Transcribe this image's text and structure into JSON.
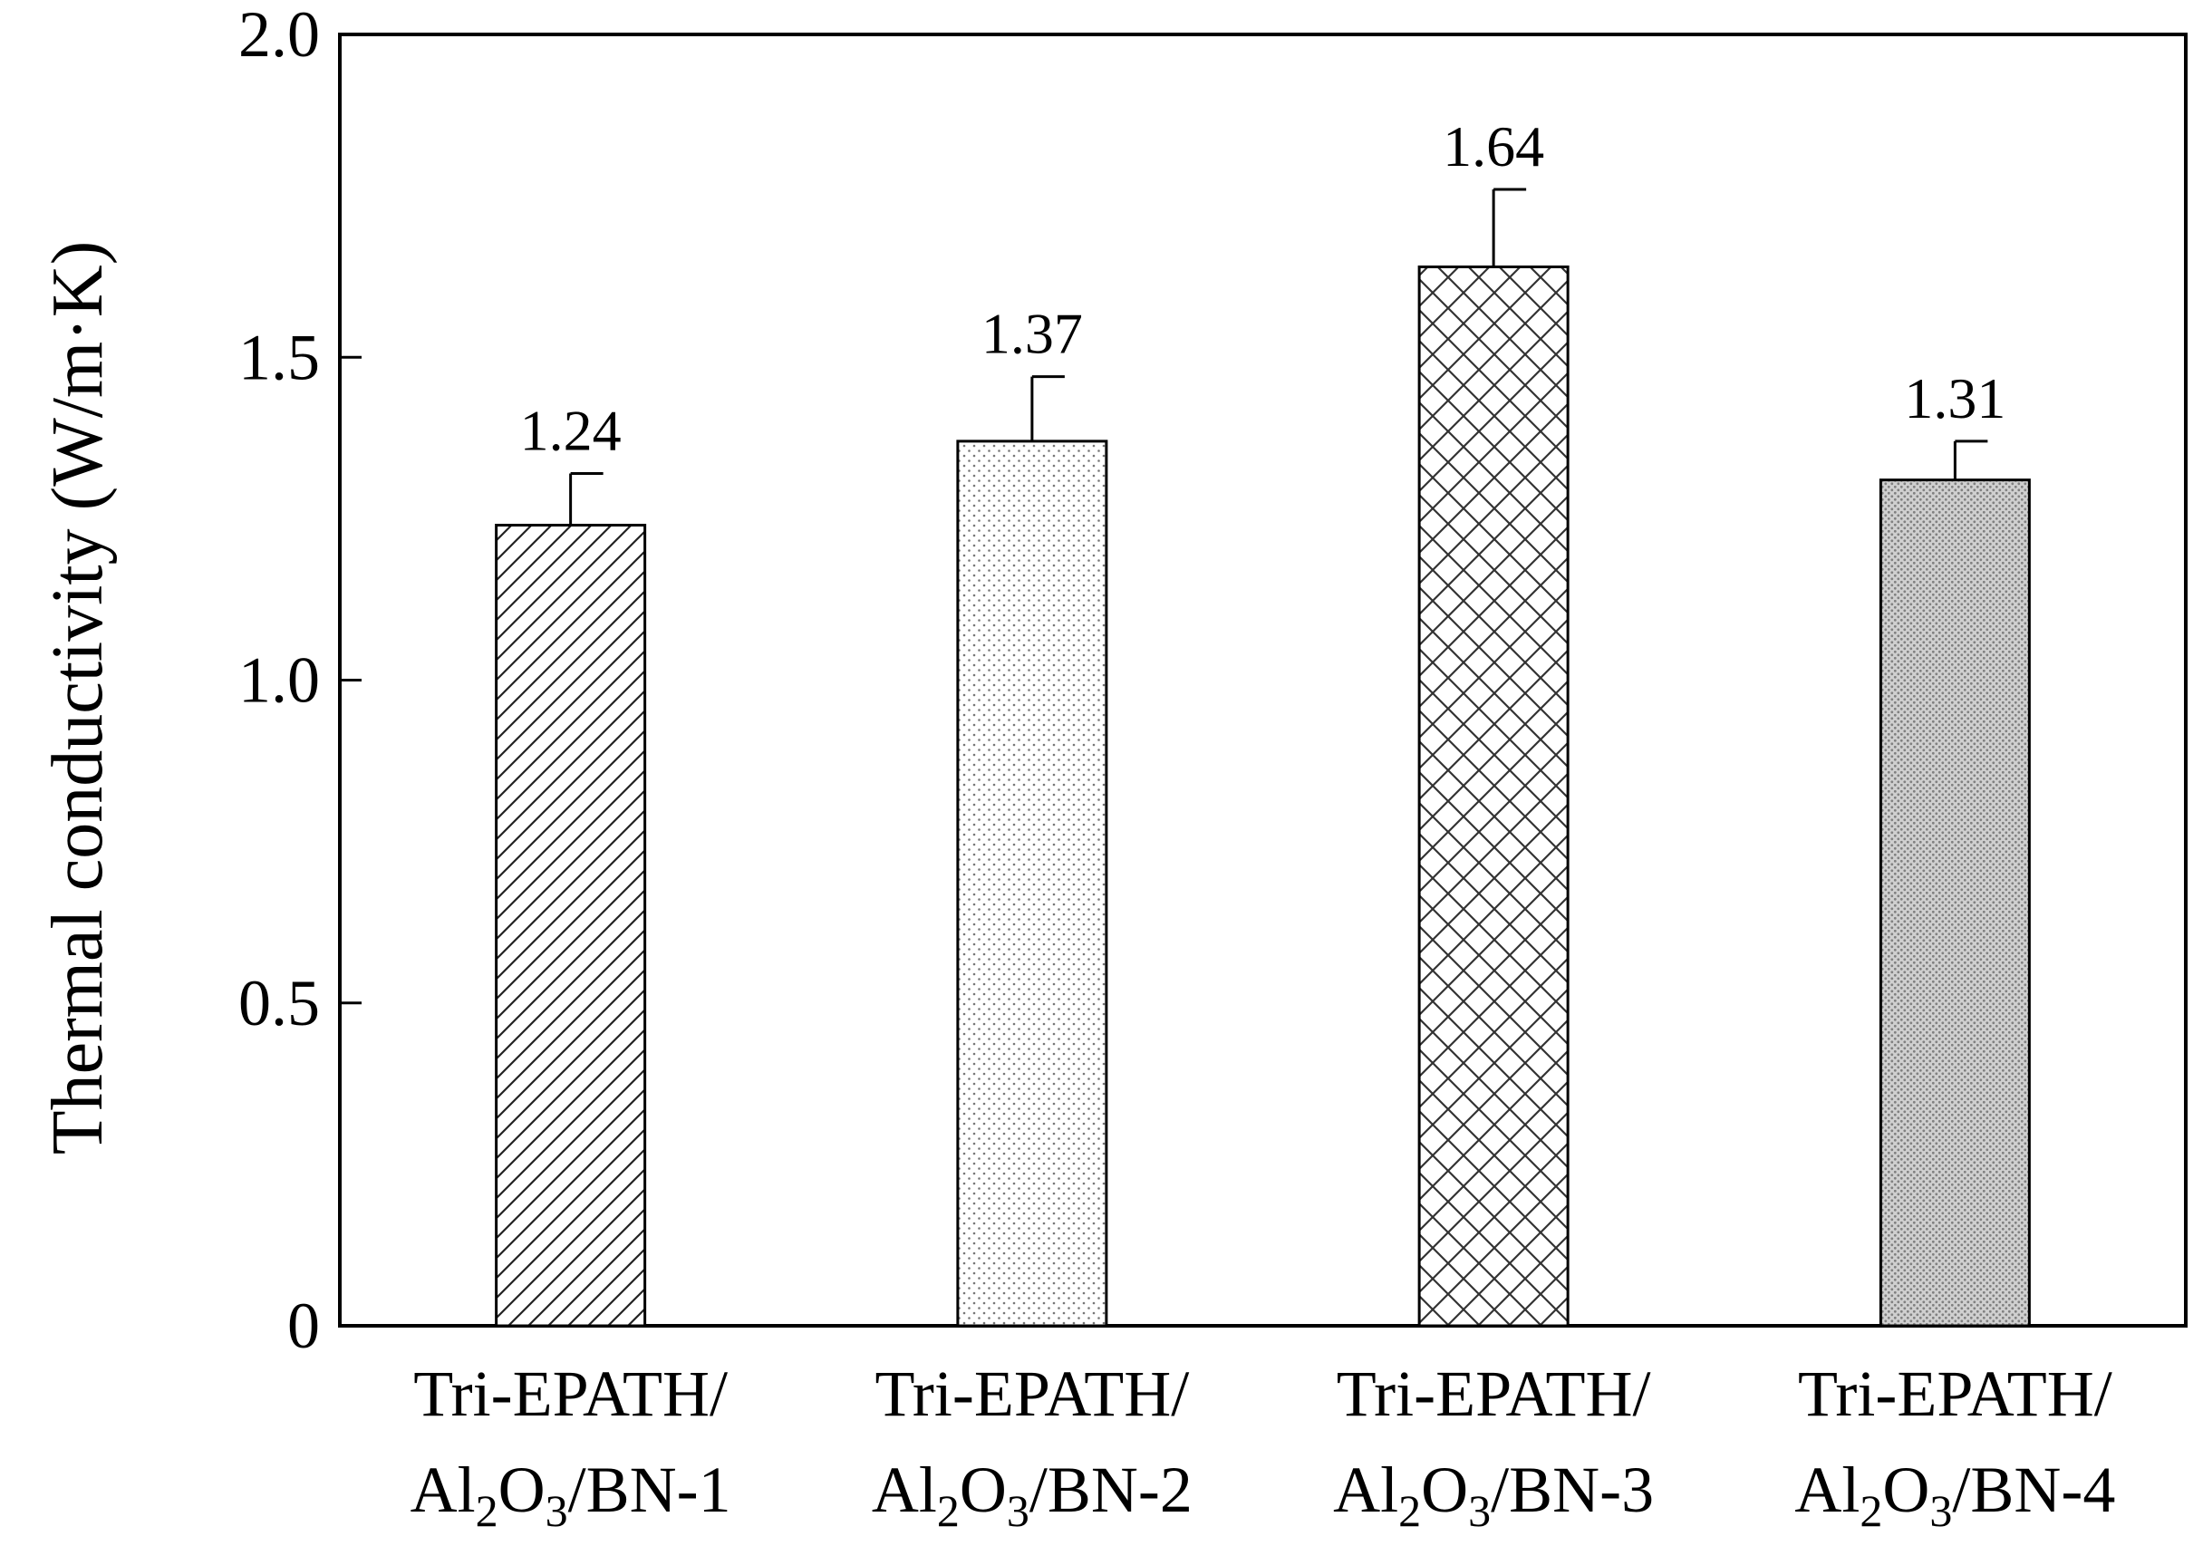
{
  "chart_data": {
    "type": "bar",
    "ylabel": "Thermal conductivity (W/m·K)",
    "ylim": [
      0,
      2.0
    ],
    "yticks": [
      {
        "value": 0,
        "label": "0"
      },
      {
        "value": 0.5,
        "label": "0.5"
      },
      {
        "value": 1.0,
        "label": "1.0"
      },
      {
        "value": 1.5,
        "label": "1.5"
      },
      {
        "value": 2.0,
        "label": "2.0"
      }
    ],
    "categories": [
      "Tri-EPATH/Al2O3/BN-1",
      "Tri-EPATH/Al2O3/BN-2",
      "Tri-EPATH/Al2O3/BN-3",
      "Tri-EPATH/Al2O3/BN-4"
    ],
    "category_labels": [
      {
        "line1": "Tri-EPATH/",
        "l2a": "Al",
        "l2b": "2",
        "l2c": "O",
        "l2d": "3",
        "l2e": "/BN-1"
      },
      {
        "line1": "Tri-EPATH/",
        "l2a": "Al",
        "l2b": "2",
        "l2c": "O",
        "l2d": "3",
        "l2e": "/BN-2"
      },
      {
        "line1": "Tri-EPATH/",
        "l2a": "Al",
        "l2b": "2",
        "l2c": "O",
        "l2d": "3",
        "l2e": "/BN-3"
      },
      {
        "line1": "Tri-EPATH/",
        "l2a": "Al",
        "l2b": "2",
        "l2c": "O",
        "l2d": "3",
        "l2e": "/BN-4"
      }
    ],
    "values": [
      1.24,
      1.37,
      1.64,
      1.31
    ],
    "value_labels": [
      "1.24",
      "1.37",
      "1.64",
      "1.31"
    ],
    "error_upper": [
      0.08,
      0.1,
      0.12,
      0.06
    ],
    "fill_patterns": [
      "diagonal-hatch",
      "sparse-dots",
      "cross-hatch",
      "dense-dots"
    ],
    "grid": false,
    "legend": "none"
  }
}
